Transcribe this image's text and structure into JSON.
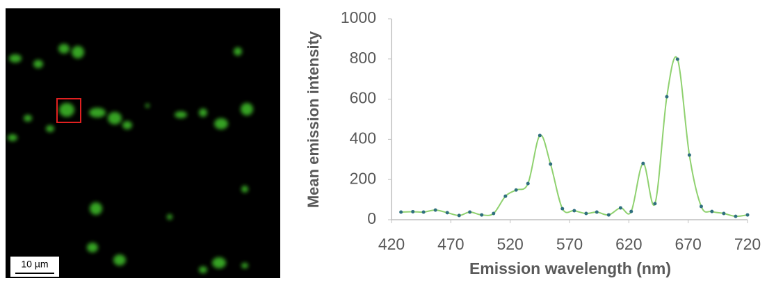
{
  "image": {
    "scale_bar_label": "10 µm"
  },
  "chart_data": {
    "type": "line",
    "x_label": "Emission wavelength (nm)",
    "y_label": "Mean emission intensity",
    "x": [
      428,
      438,
      447,
      457,
      467,
      477,
      486,
      496,
      506,
      516,
      525,
      535,
      545,
      554,
      564,
      574,
      584,
      593,
      603,
      613,
      622,
      632,
      642,
      652,
      661,
      671,
      681,
      690,
      700,
      710,
      720
    ],
    "series": [
      {
        "color": "#8fd16f",
        "marker_color": "#2f6f7e",
        "values": [
          38,
          40,
          38,
          48,
          35,
          21,
          38,
          24,
          31,
          117,
          148,
          180,
          419,
          277,
          55,
          45,
          31,
          38,
          24,
          59,
          41,
          280,
          80,
          612,
          799,
          322,
          66,
          41,
          31,
          17,
          24
        ]
      }
    ],
    "xlim": [
      420,
      720
    ],
    "xticks": [
      420,
      470,
      520,
      570,
      620,
      670,
      720
    ],
    "ylim": [
      0,
      1000
    ],
    "yticks": [
      0,
      200,
      400,
      600,
      800,
      1000
    ]
  }
}
